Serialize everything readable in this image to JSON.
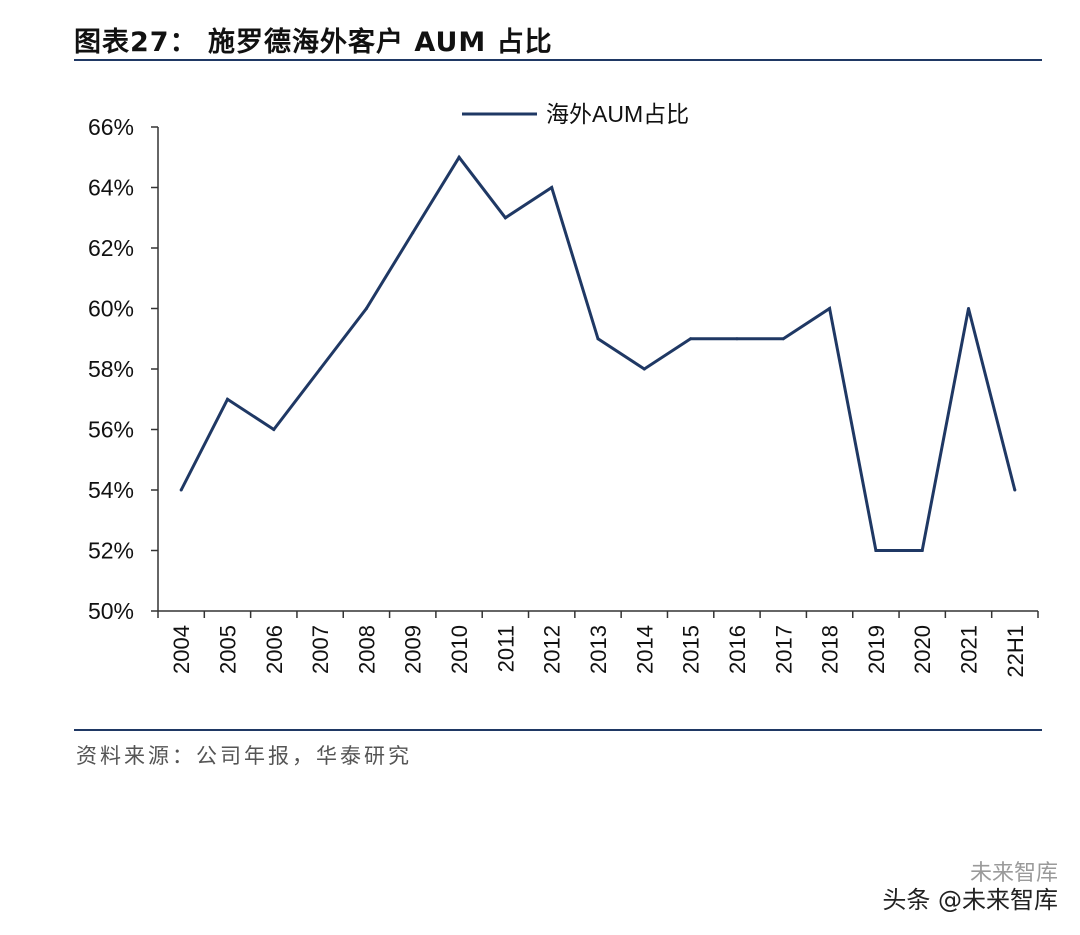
{
  "figure": {
    "title": "图表27： 施罗德海外客户 AUM 占比",
    "source": "资料来源：公司年报，华泰研究",
    "watermark_line1": "未来智库",
    "watermark_line2": "头条 @未来智库"
  },
  "colors": {
    "line": "#1f3864",
    "axis": "#333333",
    "rule": "#1f3864"
  },
  "chart_data": {
    "type": "line",
    "title": "",
    "xlabel": "",
    "ylabel": "",
    "categories": [
      "2004",
      "2005",
      "2006",
      "2007",
      "2008",
      "2009",
      "2010",
      "2011",
      "2012",
      "2013",
      "2014",
      "2015",
      "2016",
      "2017",
      "2018",
      "2019",
      "2020",
      "2021",
      "22H1"
    ],
    "series": [
      {
        "name": "海外AUM占比",
        "values": [
          54,
          57,
          56,
          58,
          60,
          62.5,
          65,
          63,
          64,
          59,
          58,
          59,
          59,
          59,
          60,
          52,
          52,
          60,
          54
        ]
      }
    ],
    "ylim": [
      50,
      66
    ],
    "yticks": [
      50,
      52,
      54,
      56,
      58,
      60,
      62,
      64,
      66
    ],
    "ytick_labels": [
      "50%",
      "52%",
      "54%",
      "56%",
      "58%",
      "60%",
      "62%",
      "64%",
      "66%"
    ],
    "unit": "%",
    "grid": false,
    "legend_position": "top-center"
  }
}
